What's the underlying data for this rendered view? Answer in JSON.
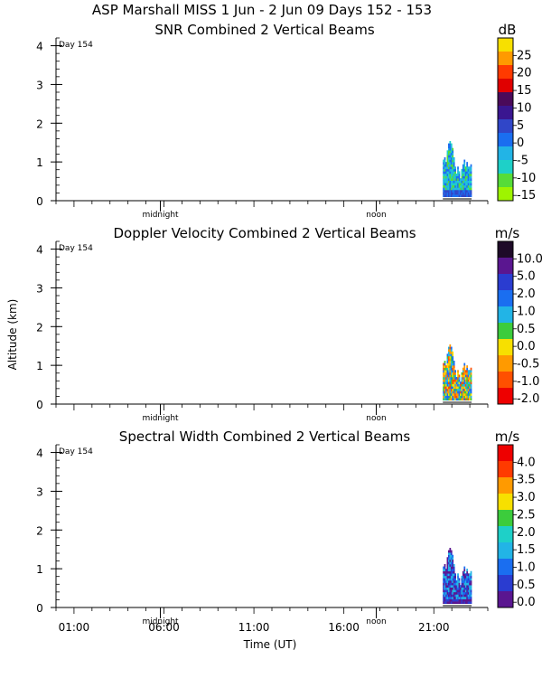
{
  "header": {
    "title": "ASP Marshall MISS    1 Jun -  2 Jun 09 Days 152 - 153"
  },
  "y_axis_label": "Altitude (km)",
  "x_axis_label": "Time (UT)",
  "day_label": "Day 154",
  "markers": {
    "midnight": "midnight",
    "noon": "noon"
  },
  "chart_data": [
    {
      "type": "heatmap",
      "title": "SNR Combined 2 Vertical Beams",
      "ylim": [
        0,
        4.2
      ],
      "yticks": [
        0,
        1,
        2,
        3,
        4
      ],
      "colorbar": {
        "unit": "dB",
        "labels": [
          "25",
          "20",
          "15",
          "10",
          "5",
          "0",
          "-5",
          "-10",
          "-15"
        ],
        "colors": [
          "#f7e000",
          "#ff9a00",
          "#ff3a00",
          "#e00000",
          "#4a0a5a",
          "#3a1690",
          "#3046c8",
          "#1a6ef0",
          "#22b4e6",
          "#1ed0c8",
          "#56dc38",
          "#9ef400"
        ]
      },
      "data_extent": {
        "x_hours": [
          21.5,
          23.1
        ],
        "alt_km": [
          0.1,
          1.55
        ]
      }
    },
    {
      "type": "heatmap",
      "title": "Doppler Velocity Combined 2 Vertical Beams",
      "ylim": [
        0,
        4.2
      ],
      "yticks": [
        0,
        1,
        2,
        3,
        4
      ],
      "colorbar": {
        "unit": "m/s",
        "labels": [
          "10.0",
          "5.0",
          "2.0",
          "1.0",
          "0.5",
          "0.0",
          "-0.5",
          "-1.0",
          "-2.0"
        ],
        "colors": [
          "#1e0a28",
          "#5a1690",
          "#2a3cd0",
          "#1a6ef0",
          "#22b4e6",
          "#3ccc3c",
          "#f7e000",
          "#ff9a00",
          "#ff5000",
          "#ee0000"
        ]
      },
      "data_extent": {
        "x_hours": [
          21.5,
          23.1
        ],
        "alt_km": [
          0.1,
          1.55
        ]
      }
    },
    {
      "type": "heatmap",
      "title": "Spectral Width Combined 2 Vertical Beams",
      "ylim": [
        0,
        4.2
      ],
      "yticks": [
        0,
        1,
        2,
        3,
        4
      ],
      "colorbar": {
        "unit": "m/s",
        "labels": [
          "4.0",
          "3.5",
          "3.0",
          "2.5",
          "2.0",
          "1.5",
          "1.0",
          "0.5",
          "0.0"
        ],
        "colors": [
          "#ee0000",
          "#ff3a00",
          "#ff9a00",
          "#f7e000",
          "#3ccc3c",
          "#1ed0c8",
          "#22b4e6",
          "#1a6ef0",
          "#2a3cd0",
          "#5a1690"
        ]
      },
      "data_extent": {
        "x_hours": [
          21.5,
          23.1
        ],
        "alt_km": [
          0.1,
          1.55
        ]
      }
    }
  ],
  "x_axis": {
    "tick_labels": [
      "01:00",
      "06:00",
      "11:00",
      "16:00",
      "21:00"
    ],
    "tick_hours": [
      1,
      6,
      11,
      16,
      21
    ],
    "xlim_hours": [
      0,
      24
    ]
  }
}
